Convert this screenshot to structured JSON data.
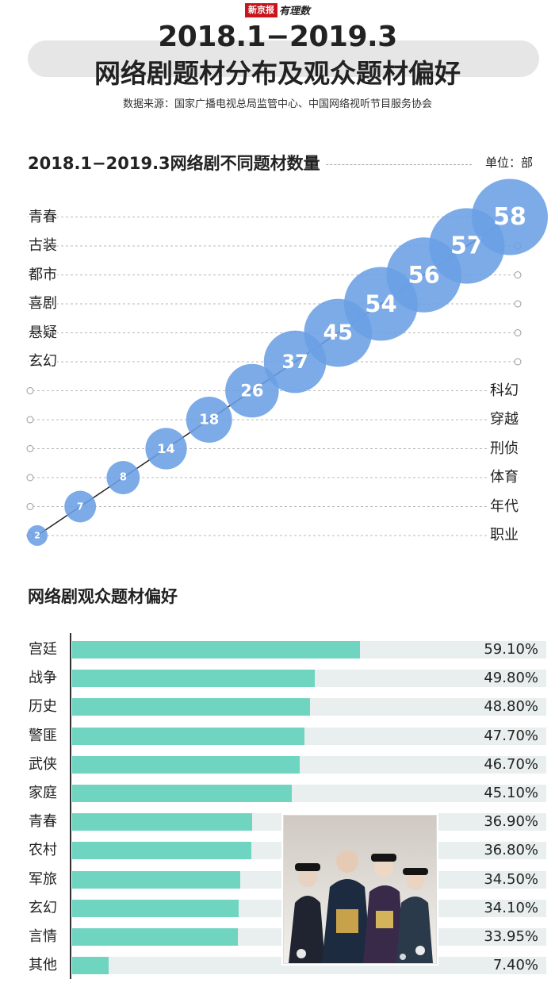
{
  "header": {
    "brand": "新京报",
    "brand_sub": "有理数",
    "title_line1": "2018.1−2019.3",
    "title_line2": "网络剧题材分布及观众题材偏好",
    "source": "数据来源：国家广播电视总局监管中心、中国网络视听节目服务协会"
  },
  "colors": {
    "bubble": "#6a9fe5",
    "bar": "#6fd4c0",
    "bar_track": "#e9efee"
  },
  "chart_data": [
    {
      "type": "scatter",
      "title": "2018.1−2019.3网络剧不同题材数量",
      "unit": "单位：部",
      "categories": [
        "职业",
        "年代",
        "体育",
        "刑侦",
        "穿越",
        "科幻",
        "玄幻",
        "悬疑",
        "喜剧",
        "都市",
        "古装",
        "青春"
      ],
      "values": [
        2,
        7,
        8,
        14,
        18,
        26,
        37,
        45,
        54,
        56,
        57,
        58
      ],
      "value_labels": [
        "2",
        "7",
        "8",
        "14",
        "18",
        "26",
        "37",
        "45",
        "54",
        "56",
        "57",
        "58"
      ],
      "left_labels": [
        "青春",
        "古装",
        "都市",
        "喜剧",
        "悬疑",
        "玄幻"
      ],
      "right_labels": [
        "科幻",
        "穿越",
        "刑侦",
        "体育",
        "年代",
        "职业"
      ],
      "legend": "none",
      "grid": true
    },
    {
      "type": "bar",
      "title": "网络剧观众题材偏好",
      "categories": [
        "宫廷",
        "战争",
        "历史",
        "警匪",
        "武侠",
        "家庭",
        "青春",
        "农村",
        "军旅",
        "玄幻",
        "言情",
        "其他"
      ],
      "values": [
        59.1,
        49.8,
        48.8,
        47.7,
        46.7,
        45.1,
        36.9,
        36.8,
        34.5,
        34.1,
        33.95,
        7.4
      ],
      "value_labels": [
        "59.10%",
        "49.80%",
        "48.80%",
        "47.70%",
        "46.70%",
        "45.10%",
        "36.90%",
        "36.80%",
        "34.50%",
        "34.10%",
        "33.95%",
        "7.40%"
      ],
      "xlim": [
        0,
        100
      ],
      "orientation": "horizontal",
      "grid": false
    }
  ],
  "image": {
    "subject": "drama-poster-photo"
  }
}
